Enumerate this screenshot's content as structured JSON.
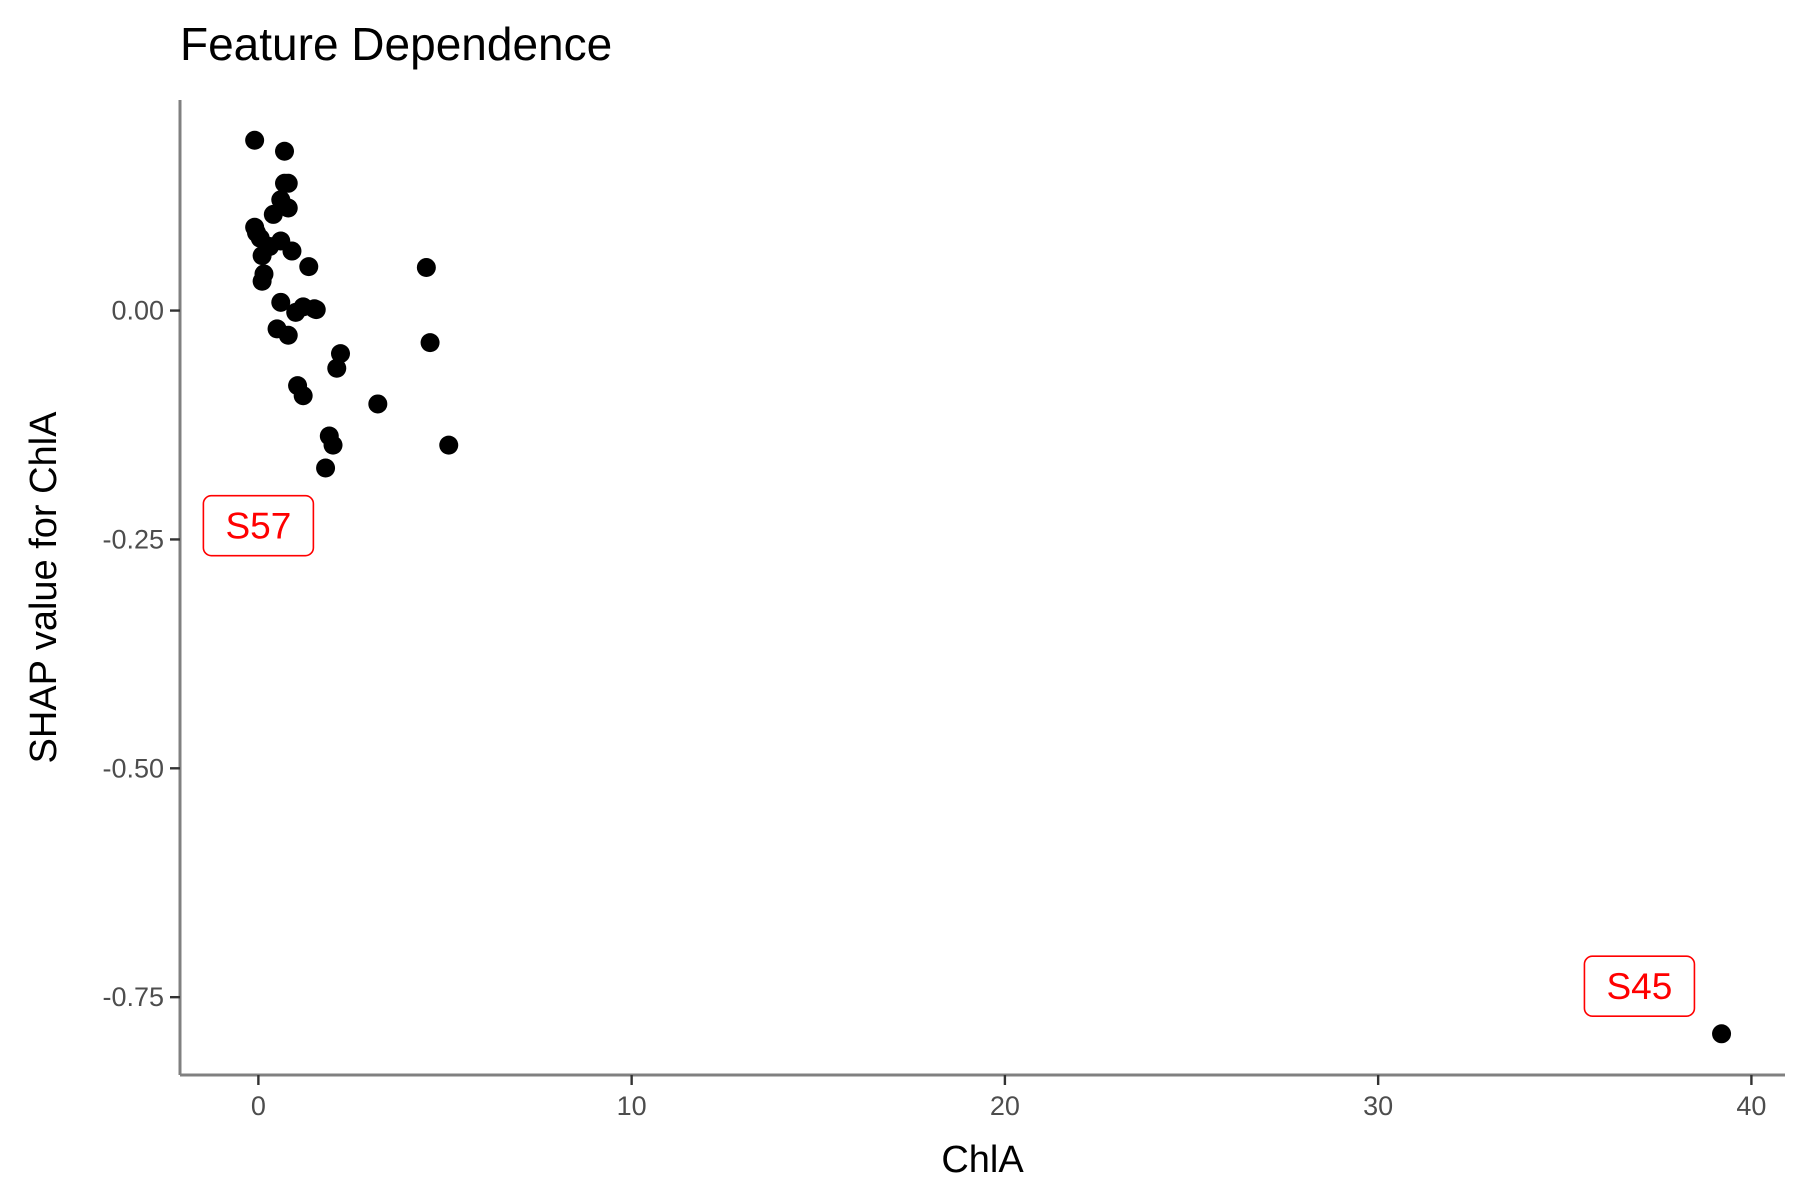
{
  "chart_data": {
    "type": "scatter",
    "title": "Feature Dependence",
    "xlabel": "ChlA",
    "ylabel": "SHAP value for ChlA",
    "xlim": [
      -2.1,
      40.9
    ],
    "ylim": [
      -0.835,
      0.23
    ],
    "x_ticks": [
      0,
      10,
      20,
      30,
      40
    ],
    "x_tick_labels": [
      "0",
      "10",
      "20",
      "30",
      "40"
    ],
    "y_ticks": [
      0,
      -0.25,
      -0.5,
      -0.75
    ],
    "y_tick_labels": [
      "0.00",
      "-0.25",
      "-0.50",
      "-0.75"
    ],
    "grid": false,
    "legend": "none",
    "point_color": "#000000",
    "annotation_color": "#ff0000",
    "points": [
      {
        "x": -0.1,
        "y": 0.186
      },
      {
        "x": 0.7,
        "y": 0.174
      },
      {
        "x": 0.7,
        "y": 0.139
      },
      {
        "x": 0.8,
        "y": 0.139
      },
      {
        "x": 0.6,
        "y": 0.121
      },
      {
        "x": 0.8,
        "y": 0.112
      },
      {
        "x": 0.4,
        "y": 0.105
      },
      {
        "x": -0.1,
        "y": 0.091
      },
      {
        "x": -0.05,
        "y": 0.085
      },
      {
        "x": 0.05,
        "y": 0.079
      },
      {
        "x": 0.6,
        "y": 0.076
      },
      {
        "x": 0.3,
        "y": 0.07
      },
      {
        "x": 0.9,
        "y": 0.065
      },
      {
        "x": 0.1,
        "y": 0.06
      },
      {
        "x": 1.35,
        "y": 0.048
      },
      {
        "x": 0.15,
        "y": 0.04
      },
      {
        "x": 0.1,
        "y": 0.032
      },
      {
        "x": 0.6,
        "y": 0.009
      },
      {
        "x": 1.2,
        "y": 0.004
      },
      {
        "x": 1.5,
        "y": 0.002
      },
      {
        "x": 1.55,
        "y": 0.001
      },
      {
        "x": 1.0,
        "y": -0.002
      },
      {
        "x": 0.5,
        "y": -0.02
      },
      {
        "x": 0.8,
        "y": -0.027
      },
      {
        "x": 2.2,
        "y": -0.047
      },
      {
        "x": 2.1,
        "y": -0.063
      },
      {
        "x": 1.05,
        "y": -0.082
      },
      {
        "x": 1.2,
        "y": -0.093
      },
      {
        "x": 3.2,
        "y": -0.102
      },
      {
        "x": 1.9,
        "y": -0.137
      },
      {
        "x": 2.0,
        "y": -0.147
      },
      {
        "x": 1.8,
        "y": -0.172
      },
      {
        "x": 4.5,
        "y": 0.047
      },
      {
        "x": 4.6,
        "y": -0.035
      },
      {
        "x": 5.1,
        "y": -0.147
      },
      {
        "x": 39.2,
        "y": -0.79
      }
    ],
    "annotations": [
      {
        "label": "S57",
        "x": 0.0,
        "y": -0.235
      },
      {
        "label": "S45",
        "x": 37.0,
        "y": -0.738
      }
    ]
  }
}
